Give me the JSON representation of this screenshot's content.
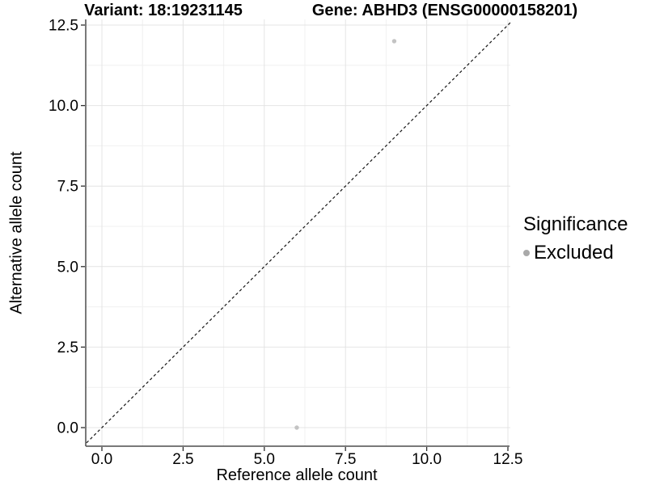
{
  "chart_data": {
    "type": "scatter",
    "title_left": "Variant: 18:19231145",
    "title_right": "Gene: ABHD3 (ENSG00000158201)",
    "xlabel": "Reference allele count",
    "ylabel": "Alternative allele count",
    "xlim": [
      -0.5,
      12.6
    ],
    "ylim": [
      -0.6,
      12.65
    ],
    "x_ticks": {
      "values": [
        0,
        2.5,
        5,
        7.5,
        10,
        12.5
      ],
      "labels": [
        "0.0",
        "2.5",
        "5.0",
        "7.5",
        "10.0",
        "12.5"
      ]
    },
    "y_ticks": {
      "values": [
        0,
        2.5,
        5,
        7.5,
        10,
        12.5
      ],
      "labels": [
        "0.0",
        "2.5",
        "5.0",
        "7.5",
        "10.0",
        "12.5"
      ]
    },
    "minor_ticks": [
      1.25,
      3.75,
      6.25,
      8.75,
      11.25
    ],
    "grid": "major+minor",
    "series": [
      {
        "name": "Excluded",
        "points": [
          {
            "x": 9,
            "y": 12
          },
          {
            "x": 6,
            "y": 0
          }
        ]
      }
    ],
    "reference_line": {
      "kind": "identity",
      "slope": 1,
      "intercept": 0,
      "style": "dashed"
    },
    "legend": {
      "title": "Significance",
      "position": "right",
      "items": [
        {
          "label": "Excluded"
        }
      ]
    }
  },
  "style": {
    "background": "#ffffff",
    "point_color": "#c3c3c3",
    "legend_key_color": "#a9a9a9",
    "grid_major_color": "#e4e4e4",
    "grid_minor_color": "#f0f0f0",
    "axis_line_color": "#4d4d4d",
    "tick_color": "#2f2f2f",
    "ref_line_color": "#151515",
    "text_color": "#000000"
  }
}
